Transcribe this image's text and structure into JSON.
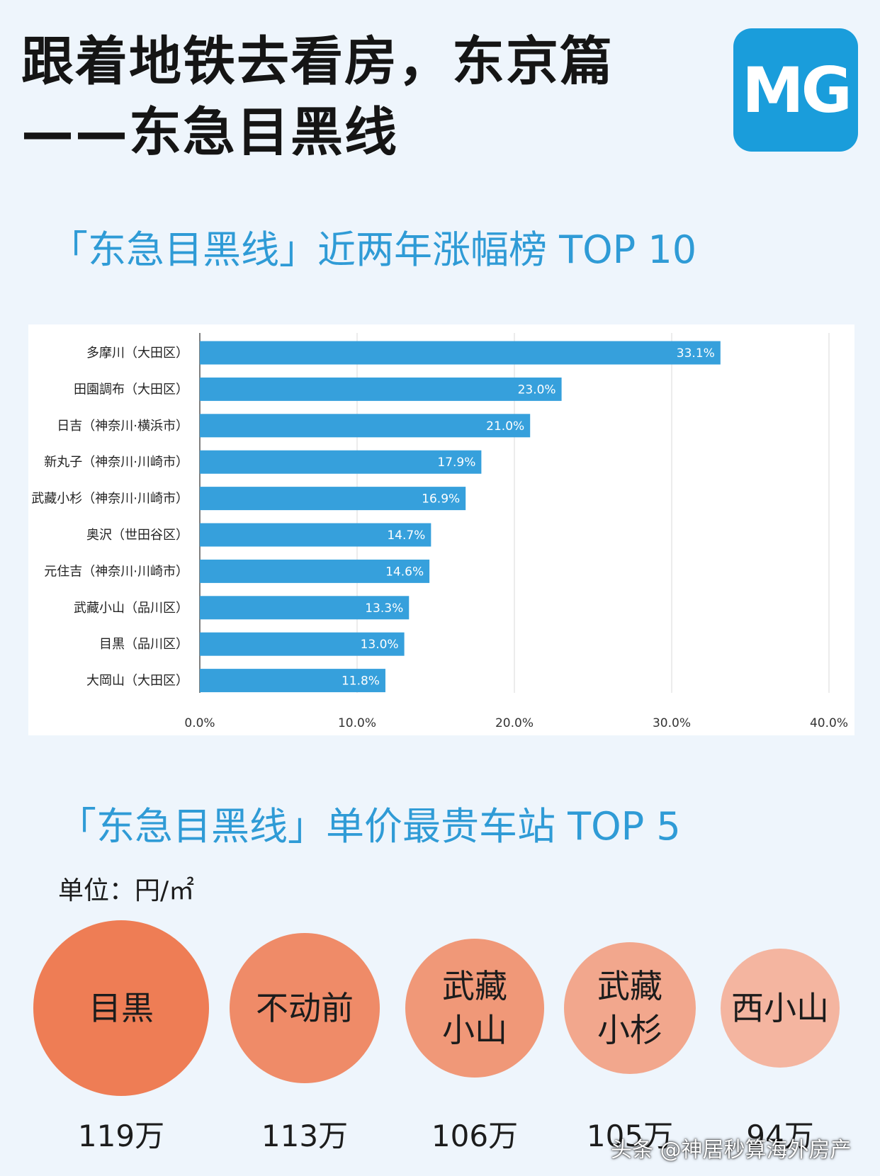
{
  "header": {
    "title_line1": "跟着地铁去看房，东京篇",
    "title_line2": "——东急目黑线",
    "logo_text": "MG"
  },
  "section1": {
    "title": "「东急目黑线」近两年涨幅榜 TOP 10"
  },
  "chart_data": {
    "type": "bar",
    "orientation": "horizontal",
    "categories": [
      "多摩川（大田区）",
      "田園調布（大田区）",
      "日吉（神奈川·横浜市）",
      "新丸子（神奈川·川崎市）",
      "武藏小杉（神奈川·川崎市）",
      "奥沢（世田谷区）",
      "元住吉（神奈川·川崎市）",
      "武藏小山（品川区）",
      "目黒（品川区）",
      "大岡山（大田区）"
    ],
    "values": [
      33.1,
      23.0,
      21.0,
      17.9,
      16.9,
      14.7,
      14.6,
      13.3,
      13.0,
      11.8
    ],
    "value_labels": [
      "33.1%",
      "23.0%",
      "21.0%",
      "17.9%",
      "16.9%",
      "14.7%",
      "14.6%",
      "13.3%",
      "13.0%",
      "11.8%"
    ],
    "xlim": [
      0,
      40
    ],
    "x_ticks": [
      0,
      10,
      20,
      30,
      40
    ],
    "x_tick_labels": [
      "0.0%",
      "10.0%",
      "20.0%",
      "30.0%",
      "40.0%"
    ],
    "grid": true,
    "bar_color": "#36a0dc"
  },
  "section2": {
    "title": "「东急目黑线」单价最贵车站 TOP 5",
    "unit": "单位：円/㎡",
    "stations": [
      {
        "name_lines": [
          "目黒"
        ],
        "price": "119万",
        "color": "#ee7d55"
      },
      {
        "name_lines": [
          "不动前"
        ],
        "price": "113万",
        "color": "#ef8b68"
      },
      {
        "name_lines": [
          "武藏",
          "小山"
        ],
        "price": "106万",
        "color": "#f09878"
      },
      {
        "name_lines": [
          "武藏",
          "小杉"
        ],
        "price": "105万",
        "color": "#f2a78d"
      },
      {
        "name_lines": [
          "西小山"
        ],
        "price": "94万",
        "color": "#f4b5a0"
      }
    ]
  },
  "footer": {
    "text": "头条 @神居秒算海外房产"
  }
}
